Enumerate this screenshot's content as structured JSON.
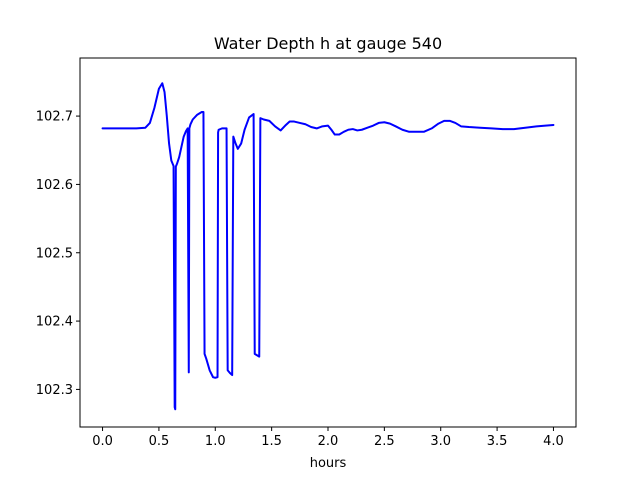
{
  "chart_data": {
    "type": "line",
    "title": "Water Depth h at gauge 540",
    "xlabel": "hours",
    "ylabel": "",
    "xlim": [
      -0.2,
      4.2
    ],
    "ylim": [
      102.245,
      102.785
    ],
    "x_ticks": [
      0.0,
      0.5,
      1.0,
      1.5,
      2.0,
      2.5,
      3.0,
      3.5,
      4.0
    ],
    "x_tick_labels": [
      "0.0",
      "0.5",
      "1.0",
      "1.5",
      "2.0",
      "2.5",
      "3.0",
      "3.5",
      "4.0"
    ],
    "y_ticks": [
      102.3,
      102.4,
      102.5,
      102.6,
      102.7
    ],
    "y_tick_labels": [
      "102.3",
      "102.4",
      "102.5",
      "102.6",
      "102.7"
    ],
    "grid": false,
    "legend": "none",
    "series": [
      {
        "color": "#0000ff",
        "x": [
          0.0,
          0.1,
          0.2,
          0.3,
          0.38,
          0.42,
          0.46,
          0.5,
          0.53,
          0.55,
          0.57,
          0.59,
          0.61,
          0.63,
          0.635,
          0.64,
          0.645,
          0.65,
          0.66,
          0.68,
          0.7,
          0.72,
          0.74,
          0.755,
          0.76,
          0.765,
          0.77,
          0.78,
          0.8,
          0.84,
          0.88,
          0.895,
          0.9,
          0.905,
          0.92,
          0.95,
          0.98,
          1.0,
          1.02,
          1.025,
          1.03,
          1.06,
          1.1,
          1.105,
          1.11,
          1.13,
          1.15,
          1.155,
          1.16,
          1.18,
          1.2,
          1.23,
          1.26,
          1.3,
          1.34,
          1.345,
          1.35,
          1.37,
          1.39,
          1.395,
          1.4,
          1.43,
          1.48,
          1.53,
          1.58,
          1.62,
          1.66,
          1.7,
          1.75,
          1.8,
          1.85,
          1.9,
          1.95,
          2.0,
          2.03,
          2.06,
          2.1,
          2.14,
          2.18,
          2.22,
          2.26,
          2.3,
          2.35,
          2.4,
          2.45,
          2.5,
          2.55,
          2.6,
          2.66,
          2.72,
          2.78,
          2.85,
          2.92,
          2.98,
          3.03,
          3.08,
          3.13,
          3.18,
          3.25,
          3.35,
          3.45,
          3.55,
          3.65,
          3.75,
          3.85,
          3.93,
          4.0
        ],
        "y": [
          102.682,
          102.682,
          102.682,
          102.682,
          102.683,
          102.69,
          102.712,
          102.74,
          102.748,
          102.735,
          102.7,
          102.66,
          102.635,
          102.627,
          102.45,
          102.274,
          102.271,
          102.626,
          102.63,
          102.64,
          102.655,
          102.67,
          102.678,
          102.682,
          102.5,
          102.325,
          102.682,
          102.688,
          102.695,
          102.702,
          102.706,
          102.706,
          102.53,
          102.352,
          102.345,
          102.328,
          102.318,
          102.317,
          102.318,
          102.676,
          102.68,
          102.682,
          102.682,
          102.5,
          102.328,
          102.324,
          102.321,
          102.5,
          102.67,
          102.66,
          102.652,
          102.66,
          102.68,
          102.698,
          102.703,
          102.52,
          102.352,
          102.35,
          102.348,
          102.52,
          102.697,
          102.695,
          102.693,
          102.685,
          102.679,
          102.686,
          102.692,
          102.692,
          102.69,
          102.688,
          102.684,
          102.682,
          102.685,
          102.686,
          102.68,
          102.673,
          102.673,
          102.677,
          102.68,
          102.681,
          102.679,
          102.68,
          102.683,
          102.686,
          102.69,
          102.691,
          102.689,
          102.685,
          102.68,
          102.677,
          102.677,
          102.677,
          102.682,
          102.689,
          102.693,
          102.693,
          102.69,
          102.685,
          102.684,
          102.683,
          102.682,
          102.681,
          102.681,
          102.683,
          102.685,
          102.686,
          102.687
        ]
      }
    ]
  }
}
